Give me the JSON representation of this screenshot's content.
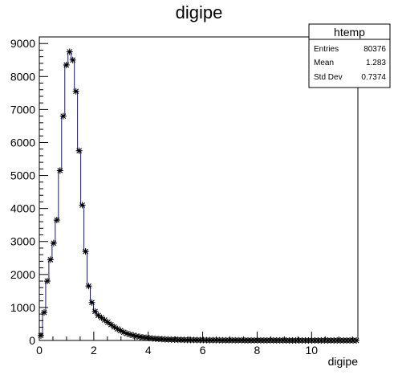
{
  "chart_data": {
    "type": "histogram",
    "title": "digipe",
    "xlabel": "digipe",
    "ylabel": "",
    "xlim": [
      0,
      11.7
    ],
    "ylim": [
      0,
      9200
    ],
    "xticks": [
      0,
      2,
      4,
      6,
      8,
      10
    ],
    "yticks": [
      0,
      1000,
      2000,
      3000,
      4000,
      5000,
      6000,
      7000,
      8000,
      9000
    ],
    "bin_width": 0.117,
    "grid": false,
    "colors": {
      "line": "#1a1a66",
      "marker": "#000000",
      "frame": "#000000"
    },
    "stats_box": {
      "title": "htemp",
      "rows": [
        {
          "label": "Entries",
          "value": "80376"
        },
        {
          "label": "Mean",
          "value": "1.283"
        },
        {
          "label": "Std Dev",
          "value": "0.7374"
        }
      ]
    },
    "values": [
      150,
      850,
      1800,
      2450,
      2950,
      3650,
      5150,
      6800,
      8350,
      8750,
      8500,
      7550,
      5750,
      4100,
      2700,
      1650,
      1150,
      880,
      760,
      690,
      620,
      550,
      480,
      410,
      350,
      300,
      250,
      210,
      180,
      155,
      130,
      110,
      95,
      82,
      70,
      60,
      52,
      45,
      39,
      34,
      30,
      27,
      24,
      22,
      20,
      18,
      16,
      15,
      14,
      13,
      12,
      11,
      10,
      9,
      9,
      8,
      8,
      7,
      7,
      6,
      6,
      5,
      5,
      5,
      4,
      4,
      4,
      3,
      3,
      3,
      3,
      2,
      2,
      2,
      2,
      2,
      2,
      1,
      1,
      1,
      1,
      1,
      1,
      1,
      1,
      0,
      1,
      0,
      0,
      0,
      0,
      1,
      0,
      0,
      0,
      0,
      0,
      0,
      0,
      0
    ]
  }
}
